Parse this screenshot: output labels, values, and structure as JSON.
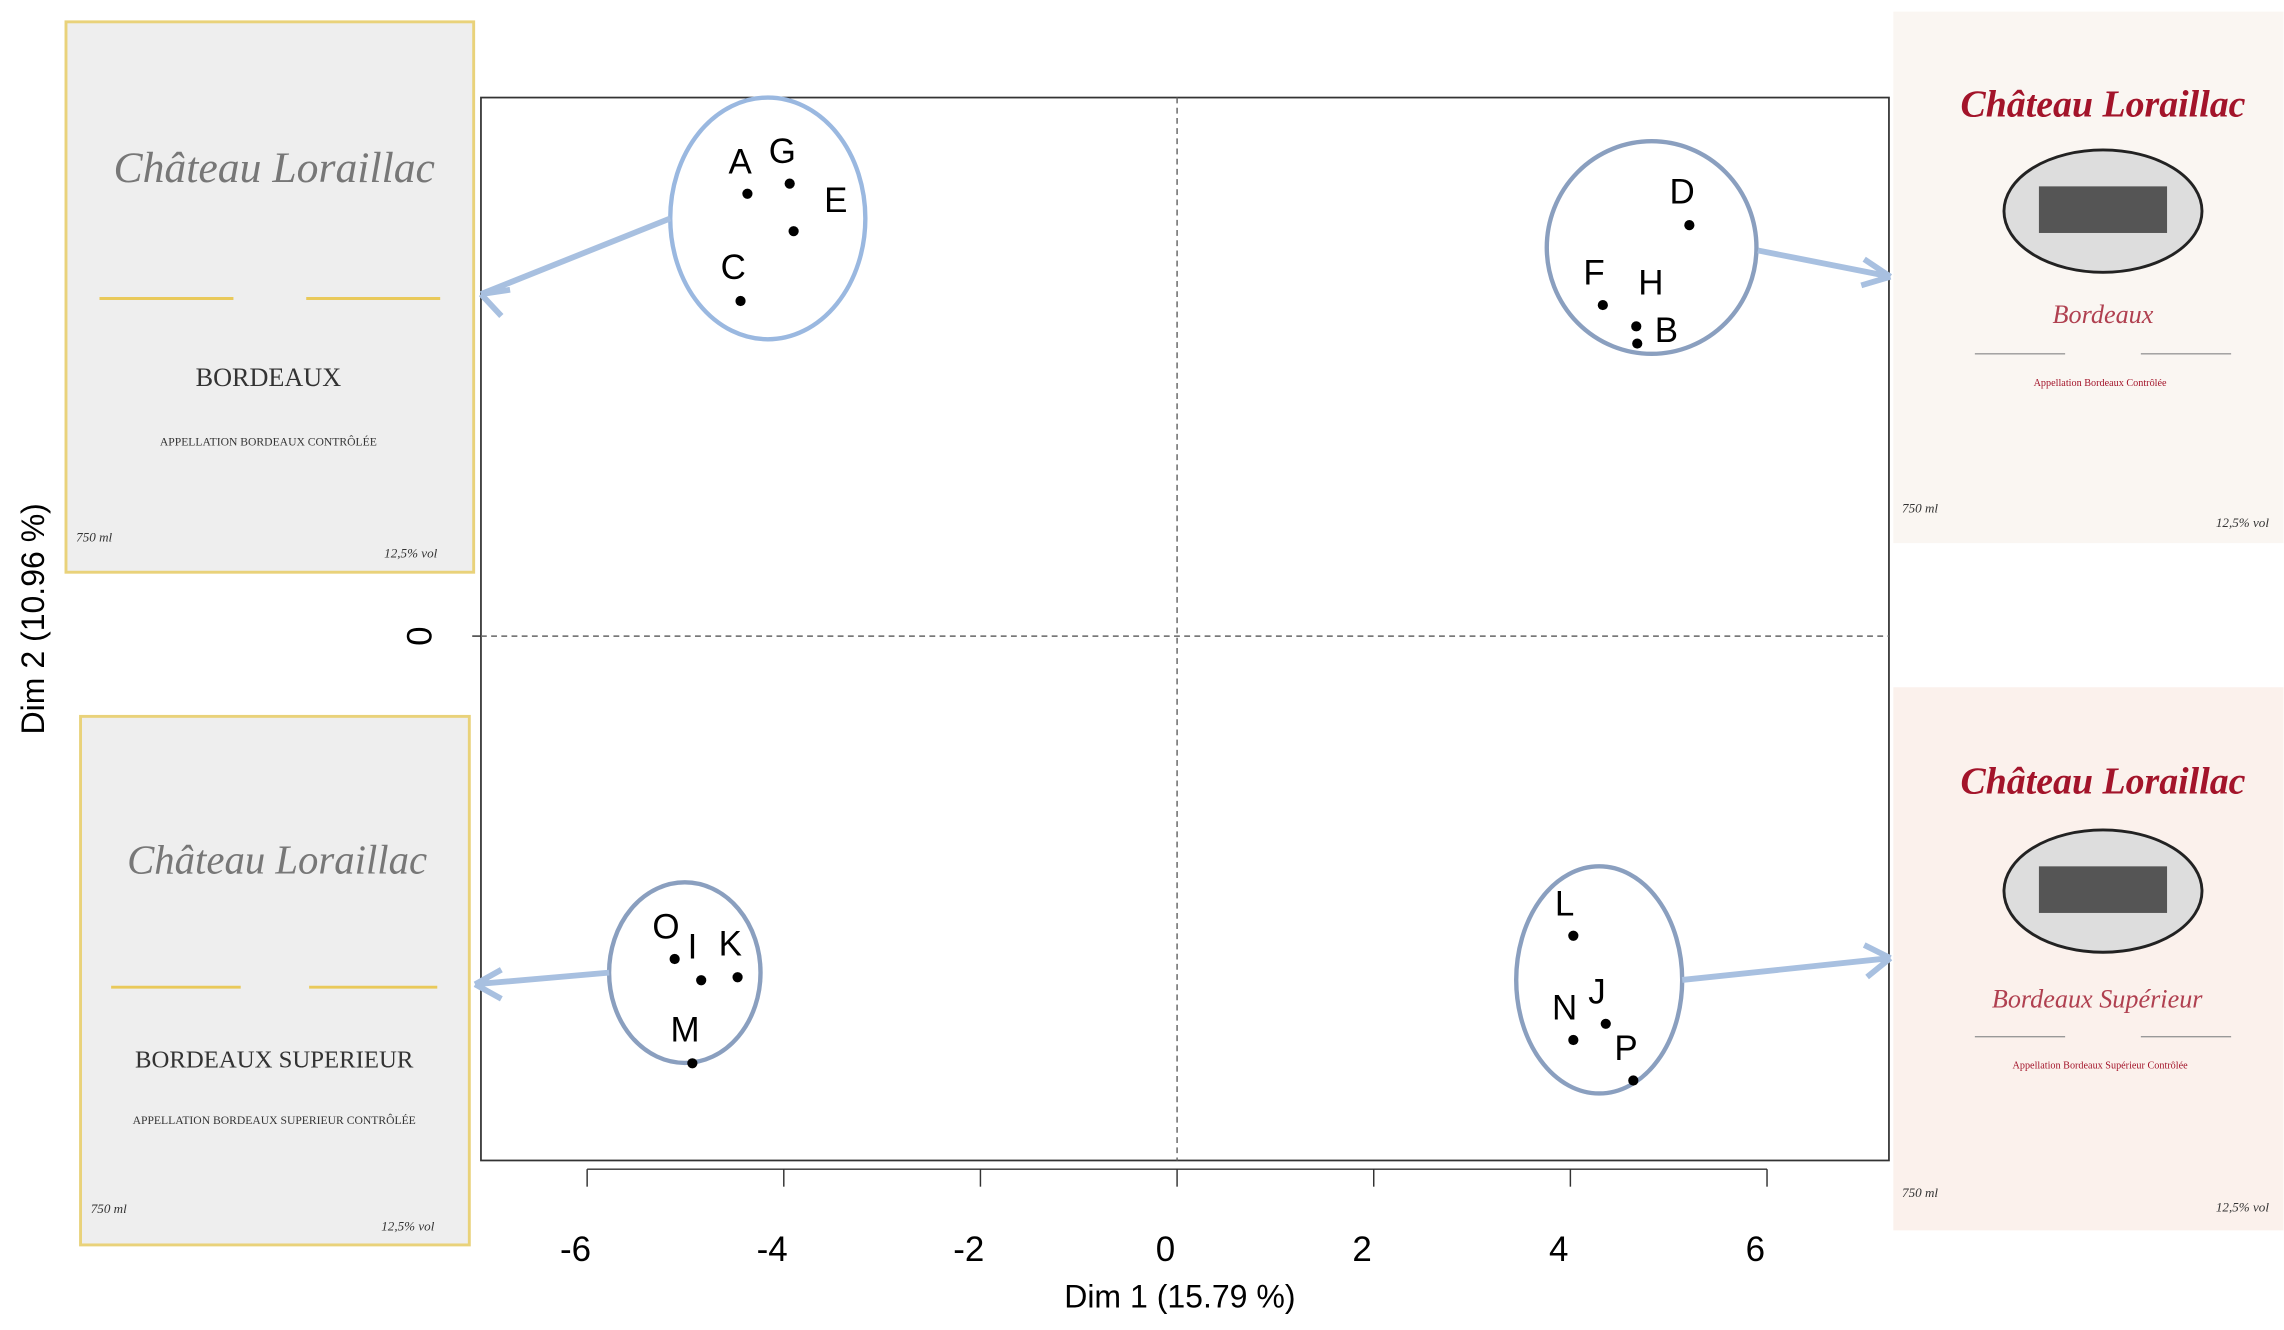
{
  "chart_data": {
    "type": "scatter",
    "x_label": "Dim 1 (15.79 %)",
    "y_label": "Dim 2 (10.96 %)",
    "xlim": [
      -7.08,
      7.24
    ],
    "ylim": [
      -5.18,
      5.32
    ],
    "xticks": [
      -6,
      -4,
      -2,
      0,
      2,
      4,
      6
    ],
    "yticks": [
      0
    ],
    "point_labels": [
      "A",
      "G",
      "E",
      "C",
      "D",
      "F",
      "H",
      "B",
      "O",
      "I",
      "K",
      "M",
      "L",
      "N",
      "J",
      "P"
    ],
    "x": [
      -4.37,
      -3.94,
      -3.9,
      -4.44,
      5.21,
      4.33,
      4.67,
      4.68,
      -5.11,
      -4.84,
      -4.47,
      -4.93,
      4.03,
      4.03,
      4.36,
      4.64
    ],
    "series": [
      {
        "color": "#000000",
        "values": [
          4.37,
          4.47,
          4.0,
          3.31,
          4.06,
          3.27,
          3.06,
          2.89,
          -3.19,
          -3.4,
          -3.37,
          -4.22,
          -2.96,
          -3.99,
          -3.83,
          -4.39
        ]
      }
    ]
  },
  "wine_labels": [
    {
      "name": "Château Loraillac",
      "region": "BORDEAUX",
      "appellation": "APPELLATION BORDEAUX CONTRÔLÉE",
      "volume": "750 ml",
      "alcohol": "12,5% vol"
    },
    {
      "name": "Château Loraillac",
      "region": "BORDEAUX SUPERIEUR",
      "appellation": "APPELLATION BORDEAUX SUPERIEUR CONTRÔLÉE",
      "volume": "750 ml",
      "alcohol": "12,5% vol"
    },
    {
      "name": "Château Loraillac",
      "region": "Bordeaux",
      "appellation": "Appellation Bordeaux Contrôlée",
      "volume": "750 ml",
      "alcohol": "12,5% vol"
    },
    {
      "name": "Château Loraillac",
      "region": "Bordeaux Supérieur",
      "appellation": "Appellation Bordeaux Supérieur Contrôlée",
      "volume": "750 ml",
      "alcohol": "12,5% vol"
    }
  ]
}
